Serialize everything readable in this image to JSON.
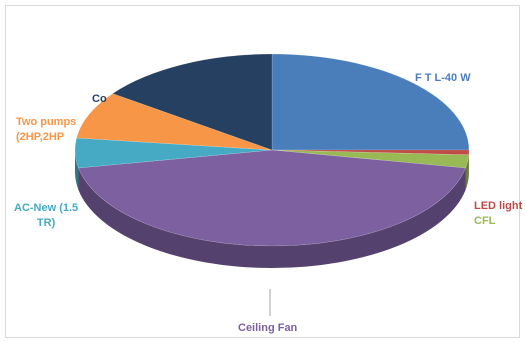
{
  "chart_data": {
    "type": "pie",
    "style": "3d-exploded",
    "title": "",
    "slices": [
      {
        "label": "F T L-40 W",
        "value": 25.0,
        "color": "#4a7ebb"
      },
      {
        "label": "LED light",
        "value": 0.8,
        "color": "#be4b48"
      },
      {
        "label": "CFL",
        "value": 2.2,
        "color": "#98b954"
      },
      {
        "label": "Ceiling Fan",
        "value": 44.0,
        "color": "#7d60a0"
      },
      {
        "label": "AC-New (1.5 TR)",
        "value": 5.0,
        "color": "#46aac5"
      },
      {
        "label": "Two pumps (2HP,2HP)",
        "value": 8.0,
        "color": "#f79646"
      },
      {
        "label": "Co",
        "value": 15.0,
        "color": "#254061"
      }
    ],
    "labels_shown": {
      "ftl": "F T L-40 W",
      "led": "LED light",
      "cfl": "CFL",
      "fan": "Ceiling Fan",
      "ac_line1": "AC-New (1.5",
      "ac_line2": "TR)",
      "pumps_line1": "Two pumps",
      "pumps_line2": "(2HP,2HP",
      "co": "Co"
    }
  }
}
